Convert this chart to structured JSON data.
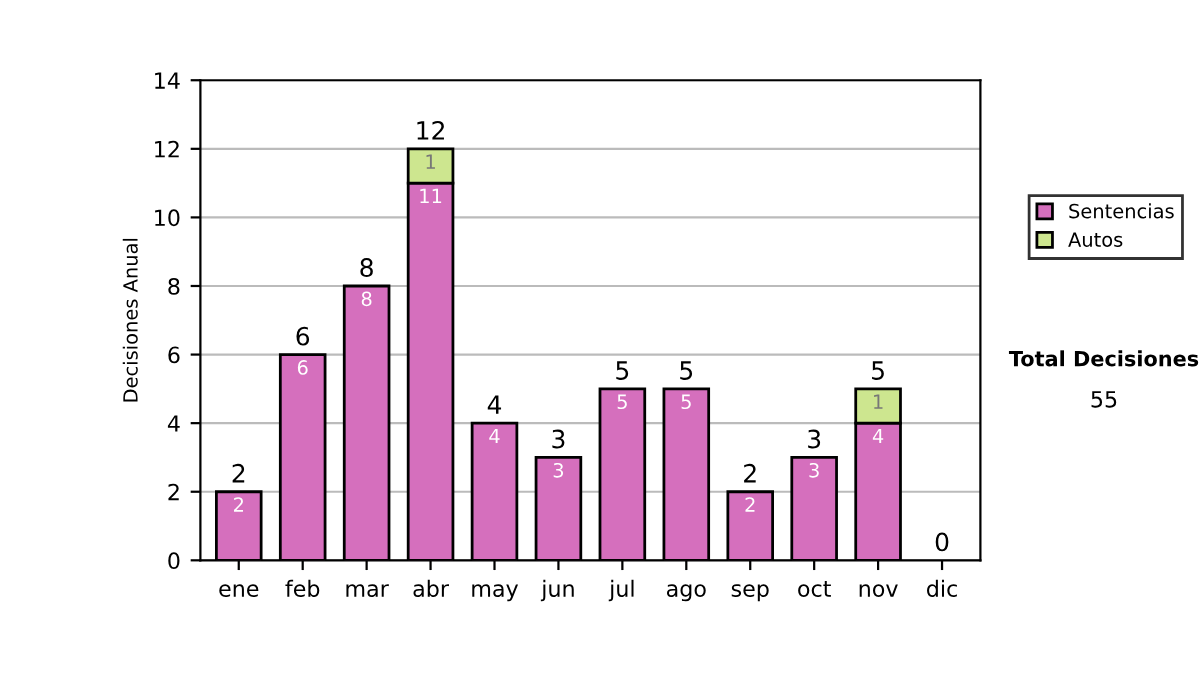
{
  "chart_data": {
    "type": "bar",
    "stacked": true,
    "ylabel": "Decisiones Anual",
    "categories": [
      "ene",
      "feb",
      "mar",
      "abr",
      "may",
      "jun",
      "jul",
      "ago",
      "sep",
      "oct",
      "nov",
      "dic"
    ],
    "series": [
      {
        "name": "Sentencias",
        "color": "#d56fbd",
        "values": [
          2,
          6,
          8,
          11,
          4,
          3,
          5,
          5,
          2,
          3,
          4,
          null
        ]
      },
      {
        "name": "Autos",
        "color": "#cde68f",
        "values": [
          null,
          null,
          null,
          1,
          null,
          null,
          null,
          null,
          null,
          null,
          1,
          null
        ]
      }
    ],
    "totals": [
      "2",
      "6",
      "8",
      "12",
      "4",
      "3",
      "5",
      "5",
      "2",
      "3",
      "5",
      "0"
    ],
    "ylim": [
      0,
      14
    ],
    "yticks": [
      0,
      2,
      4,
      6,
      8,
      10,
      12,
      14
    ],
    "grid": "y",
    "data_labels": true,
    "legend": "right",
    "annotations": [
      "Total Decisiones",
      "55"
    ]
  }
}
